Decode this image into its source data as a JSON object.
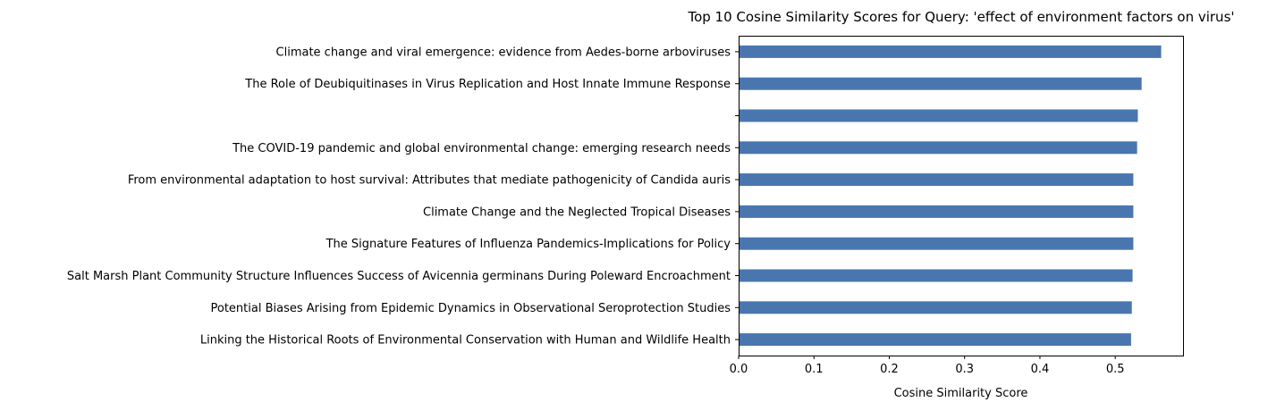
{
  "chart_data": {
    "type": "bar",
    "orientation": "horizontal",
    "title": "Top 10 Cosine Similarity Scores for Query: 'effect of environment factors on virus'",
    "xlabel": "Cosine Similarity Score",
    "ylabel": "",
    "xlim": [
      0,
      0.59
    ],
    "xticks": [
      "0.0",
      "0.1",
      "0.2",
      "0.3",
      "0.4",
      "0.5"
    ],
    "grid": false,
    "bar_color": "#4a76b0",
    "categories": [
      "Climate change and viral emergence: evidence from Aedes-borne arboviruses",
      "The Role of Deubiquitinases in Virus Replication and Host Innate Immune Response",
      "",
      "The COVID-19 pandemic and global environmental change: emerging research needs",
      "From environmental adaptation to host survival: Attributes that mediate pathogenicity of Candida auris",
      "Climate Change and the Neglected Tropical Diseases",
      "The Signature Features of Influenza Pandemics-Implications for Policy",
      "Salt Marsh Plant Community Structure Influences Success of Avicennia germinans During Poleward Encroachment",
      "Potential Biases Arising from Epidemic Dynamics in Observational Seroprotection Studies",
      "Linking the Historical Roots of Environmental Conservation with Human and Wildlife Health"
    ],
    "values": [
      0.561,
      0.535,
      0.53,
      0.529,
      0.524,
      0.524,
      0.524,
      0.523,
      0.522,
      0.521
    ]
  }
}
